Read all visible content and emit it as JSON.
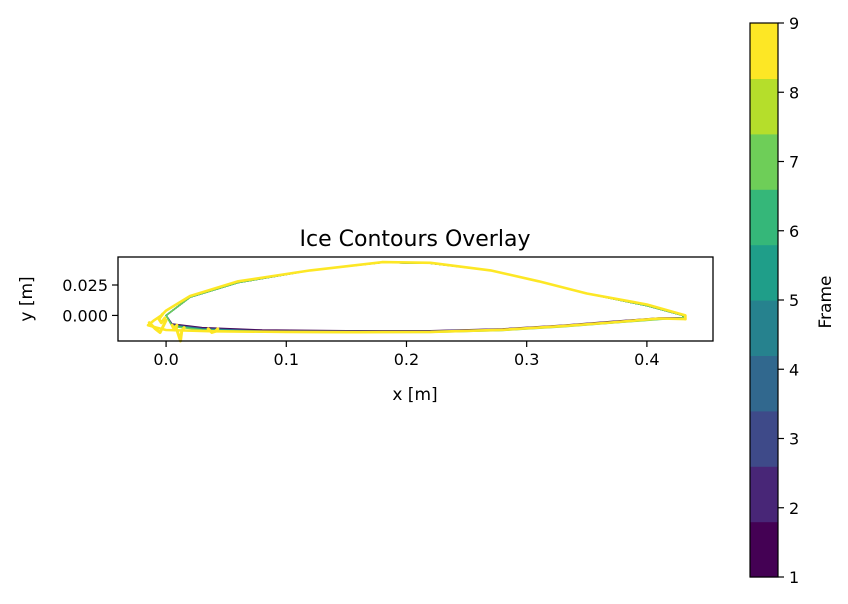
{
  "chart_data": {
    "type": "line",
    "title": "Ice Contours Overlay",
    "xlabel": "x [m]",
    "ylabel": "y [m]",
    "xlim": [
      -0.04,
      0.455
    ],
    "ylim": [
      -0.021,
      0.048
    ],
    "xticks": [
      {
        "value": 0.0,
        "label": "0.0"
      },
      {
        "value": 0.1,
        "label": "0.1"
      },
      {
        "value": 0.2,
        "label": "0.2"
      },
      {
        "value": 0.3,
        "label": "0.3"
      },
      {
        "value": 0.4,
        "label": "0.4"
      }
    ],
    "yticks": [
      {
        "value": 0.0,
        "label": "0.000"
      },
      {
        "value": 0.025,
        "label": "0.025"
      }
    ],
    "colorbar": {
      "label": "Frame",
      "ticks": [
        "1",
        "2",
        "3",
        "4",
        "5",
        "6",
        "7",
        "8",
        "9"
      ],
      "colors": [
        "#440154",
        "#482677",
        "#3e4a89",
        "#31688e",
        "#26828e",
        "#1f9e89",
        "#35b779",
        "#6ece58",
        "#b5de2b",
        "#fde725"
      ]
    },
    "series": [
      {
        "name": "Frame 1",
        "color": "#440154",
        "upper": [
          [
            0.0,
            0.0
          ],
          [
            0.02,
            0.015
          ],
          [
            0.06,
            0.027
          ],
          [
            0.12,
            0.037
          ],
          [
            0.18,
            0.0435
          ],
          [
            0.22,
            0.0428
          ],
          [
            0.27,
            0.037
          ],
          [
            0.31,
            0.028
          ],
          [
            0.35,
            0.018
          ],
          [
            0.4,
            0.008
          ],
          [
            0.43,
            0.0
          ],
          [
            0.43,
            -0.002
          ]
        ],
        "lower": [
          [
            0.0,
            0.0
          ],
          [
            0.005,
            -0.007
          ],
          [
            0.03,
            -0.01
          ],
          [
            0.08,
            -0.012
          ],
          [
            0.15,
            -0.0125
          ],
          [
            0.22,
            -0.0125
          ],
          [
            0.28,
            -0.011
          ],
          [
            0.33,
            -0.008
          ],
          [
            0.37,
            -0.005
          ],
          [
            0.41,
            -0.002
          ],
          [
            0.43,
            -0.002
          ]
        ]
      },
      {
        "name": "Frame 2",
        "color": "#482677",
        "upper": [
          [
            0.0,
            0.0
          ],
          [
            0.02,
            0.015
          ],
          [
            0.06,
            0.027
          ],
          [
            0.12,
            0.037
          ],
          [
            0.18,
            0.0435
          ],
          [
            0.22,
            0.0428
          ],
          [
            0.27,
            0.037
          ],
          [
            0.31,
            0.028
          ],
          [
            0.35,
            0.018
          ],
          [
            0.4,
            0.008
          ],
          [
            0.43,
            0.0
          ],
          [
            0.43,
            -0.002
          ]
        ],
        "lower": [
          [
            0.0,
            0.0
          ],
          [
            0.005,
            -0.0075
          ],
          [
            0.03,
            -0.0105
          ],
          [
            0.08,
            -0.0125
          ],
          [
            0.15,
            -0.0128
          ],
          [
            0.22,
            -0.0127
          ],
          [
            0.28,
            -0.0112
          ],
          [
            0.33,
            -0.0082
          ],
          [
            0.37,
            -0.0052
          ],
          [
            0.41,
            -0.0022
          ],
          [
            0.43,
            -0.002
          ]
        ]
      },
      {
        "name": "Frame 3",
        "color": "#3e4a89",
        "upper": [
          [
            0.0,
            0.0
          ],
          [
            0.02,
            0.015
          ],
          [
            0.06,
            0.027
          ],
          [
            0.12,
            0.037
          ],
          [
            0.18,
            0.0435
          ],
          [
            0.22,
            0.0428
          ],
          [
            0.27,
            0.037
          ],
          [
            0.31,
            0.028
          ],
          [
            0.35,
            0.018
          ],
          [
            0.4,
            0.008
          ],
          [
            0.43,
            0.0
          ],
          [
            0.43,
            -0.002
          ]
        ],
        "lower": [
          [
            0.0,
            0.0
          ],
          [
            0.005,
            -0.0078
          ],
          [
            0.03,
            -0.0108
          ],
          [
            0.08,
            -0.0128
          ],
          [
            0.15,
            -0.013
          ],
          [
            0.22,
            -0.0129
          ],
          [
            0.28,
            -0.0114
          ],
          [
            0.33,
            -0.0084
          ],
          [
            0.37,
            -0.0054
          ],
          [
            0.41,
            -0.0024
          ],
          [
            0.43,
            -0.002
          ]
        ]
      },
      {
        "name": "Frame 4",
        "color": "#31688e",
        "upper": [
          [
            0.0,
            0.0
          ],
          [
            0.02,
            0.015
          ],
          [
            0.06,
            0.027
          ],
          [
            0.12,
            0.037
          ],
          [
            0.18,
            0.0435
          ],
          [
            0.22,
            0.0428
          ],
          [
            0.27,
            0.037
          ],
          [
            0.31,
            0.028
          ],
          [
            0.35,
            0.018
          ],
          [
            0.4,
            0.008
          ],
          [
            0.43,
            0.0
          ],
          [
            0.43,
            -0.002
          ]
        ],
        "lower": [
          [
            0.0,
            0.0
          ],
          [
            0.005,
            -0.008
          ],
          [
            0.03,
            -0.011
          ],
          [
            0.08,
            -0.013
          ],
          [
            0.15,
            -0.0132
          ],
          [
            0.22,
            -0.0131
          ],
          [
            0.28,
            -0.0116
          ],
          [
            0.33,
            -0.0086
          ],
          [
            0.37,
            -0.0056
          ],
          [
            0.41,
            -0.0026
          ],
          [
            0.43,
            -0.002
          ]
        ]
      },
      {
        "name": "Frame 5",
        "color": "#26828e",
        "upper": [
          [
            0.0,
            0.0
          ],
          [
            0.02,
            0.015
          ],
          [
            0.06,
            0.027
          ],
          [
            0.12,
            0.037
          ],
          [
            0.18,
            0.0435
          ],
          [
            0.22,
            0.0428
          ],
          [
            0.27,
            0.037
          ],
          [
            0.31,
            0.028
          ],
          [
            0.35,
            0.018
          ],
          [
            0.4,
            0.008
          ],
          [
            0.43,
            0.0
          ],
          [
            0.43,
            -0.002
          ]
        ],
        "lower": [
          [
            0.0,
            0.0
          ],
          [
            0.005,
            -0.0082
          ],
          [
            0.03,
            -0.0112
          ],
          [
            0.08,
            -0.0132
          ],
          [
            0.15,
            -0.0134
          ],
          [
            0.22,
            -0.0133
          ],
          [
            0.28,
            -0.0118
          ],
          [
            0.33,
            -0.0088
          ],
          [
            0.37,
            -0.0058
          ],
          [
            0.41,
            -0.0028
          ],
          [
            0.43,
            -0.002
          ]
        ]
      },
      {
        "name": "Frame 6",
        "color": "#1f9e89",
        "upper": [
          [
            0.0,
            0.0
          ],
          [
            0.02,
            0.015
          ],
          [
            0.06,
            0.027
          ],
          [
            0.12,
            0.037
          ],
          [
            0.18,
            0.0435
          ],
          [
            0.22,
            0.0428
          ],
          [
            0.27,
            0.037
          ],
          [
            0.31,
            0.028
          ],
          [
            0.35,
            0.018
          ],
          [
            0.4,
            0.008
          ],
          [
            0.43,
            0.0
          ],
          [
            0.43,
            -0.002
          ]
        ],
        "lower": [
          [
            0.0,
            0.0
          ],
          [
            0.005,
            -0.0085
          ],
          [
            0.03,
            -0.0115
          ],
          [
            0.08,
            -0.0134
          ],
          [
            0.15,
            -0.0136
          ],
          [
            0.22,
            -0.0135
          ],
          [
            0.28,
            -0.012
          ],
          [
            0.33,
            -0.009
          ],
          [
            0.37,
            -0.006
          ],
          [
            0.41,
            -0.003
          ],
          [
            0.43,
            -0.002
          ]
        ]
      },
      {
        "name": "Frame 7",
        "color": "#35b779",
        "upper": [
          [
            0.0,
            0.0
          ],
          [
            0.02,
            0.015
          ],
          [
            0.06,
            0.027
          ],
          [
            0.12,
            0.037
          ],
          [
            0.18,
            0.0435
          ],
          [
            0.22,
            0.0428
          ],
          [
            0.27,
            0.037
          ],
          [
            0.31,
            0.028
          ],
          [
            0.35,
            0.018
          ],
          [
            0.4,
            0.008
          ],
          [
            0.43,
            0.0
          ],
          [
            0.43,
            -0.002
          ]
        ],
        "lower": [
          [
            0.0,
            0.0
          ],
          [
            0.005,
            -0.0088
          ],
          [
            0.03,
            -0.0118
          ],
          [
            0.08,
            -0.0136
          ],
          [
            0.15,
            -0.0138
          ],
          [
            0.22,
            -0.0137
          ],
          [
            0.28,
            -0.0122
          ],
          [
            0.33,
            -0.0092
          ],
          [
            0.37,
            -0.0062
          ],
          [
            0.41,
            -0.0032
          ],
          [
            0.43,
            -0.002
          ]
        ]
      },
      {
        "name": "Frame 8",
        "color": "#6ece58",
        "upper": [
          [
            0.0,
            0.0
          ],
          [
            0.02,
            0.015
          ],
          [
            0.06,
            0.027
          ],
          [
            0.12,
            0.037
          ],
          [
            0.18,
            0.0435
          ],
          [
            0.22,
            0.0428
          ],
          [
            0.27,
            0.037
          ],
          [
            0.31,
            0.028
          ],
          [
            0.35,
            0.018
          ],
          [
            0.4,
            0.008
          ],
          [
            0.43,
            0.0
          ],
          [
            0.43,
            -0.002
          ]
        ],
        "lower": [
          [
            0.0,
            0.0
          ],
          [
            0.005,
            -0.009
          ],
          [
            0.03,
            -0.012
          ],
          [
            0.08,
            -0.0138
          ],
          [
            0.15,
            -0.014
          ],
          [
            0.22,
            -0.0139
          ],
          [
            0.28,
            -0.0124
          ],
          [
            0.33,
            -0.0094
          ],
          [
            0.37,
            -0.0064
          ],
          [
            0.41,
            -0.0034
          ],
          [
            0.43,
            -0.002
          ]
        ]
      },
      {
        "name": "Frame 9",
        "color": "#fde725",
        "upper": [
          [
            -0.015,
            -0.008
          ],
          [
            -0.01,
            -0.004
          ],
          [
            -0.004,
            0.0
          ],
          [
            0.0,
            0.004
          ],
          [
            0.02,
            0.016
          ],
          [
            0.06,
            0.028
          ],
          [
            0.12,
            0.037
          ],
          [
            0.18,
            0.0438
          ],
          [
            0.22,
            0.0432
          ],
          [
            0.27,
            0.037
          ],
          [
            0.31,
            0.028
          ],
          [
            0.35,
            0.018
          ],
          [
            0.4,
            0.009
          ],
          [
            0.432,
            0.0
          ],
          [
            0.432,
            -0.003
          ]
        ],
        "lower": [
          [
            -0.015,
            -0.008
          ],
          [
            -0.008,
            -0.01
          ],
          [
            0.0,
            -0.012
          ],
          [
            0.04,
            -0.013
          ],
          [
            0.1,
            -0.0135
          ],
          [
            0.16,
            -0.0138
          ],
          [
            0.22,
            -0.0135
          ],
          [
            0.28,
            -0.0118
          ],
          [
            0.33,
            -0.0088
          ],
          [
            0.37,
            -0.0058
          ],
          [
            0.41,
            -0.0025
          ],
          [
            0.432,
            -0.003
          ]
        ]
      }
    ],
    "ice_features": [
      {
        "color": "#fde725",
        "points": [
          [
            -0.014,
            -0.006
          ],
          [
            -0.009,
            -0.011
          ],
          [
            -0.005,
            -0.014
          ],
          [
            -0.002,
            -0.008
          ],
          [
            0.0,
            -0.004
          ]
        ]
      },
      {
        "color": "#fde725",
        "points": [
          [
            0.008,
            -0.009
          ],
          [
            0.01,
            -0.015
          ],
          [
            0.012,
            -0.021
          ],
          [
            0.013,
            -0.013
          ],
          [
            0.015,
            -0.01
          ]
        ]
      },
      {
        "color": "#fde725",
        "points": [
          [
            0.035,
            -0.011
          ],
          [
            0.038,
            -0.014
          ],
          [
            0.041,
            -0.013
          ],
          [
            0.043,
            -0.011
          ]
        ]
      },
      {
        "color": "#fde725",
        "points": [
          [
            0.005,
            -0.008
          ],
          [
            0.007,
            -0.012
          ],
          [
            0.009,
            -0.008
          ]
        ]
      },
      {
        "color": "#fde725",
        "points": [
          [
            -0.003,
            0.001
          ],
          [
            -0.006,
            -0.003
          ],
          [
            -0.004,
            -0.006
          ],
          [
            -0.001,
            -0.002
          ]
        ]
      }
    ]
  }
}
